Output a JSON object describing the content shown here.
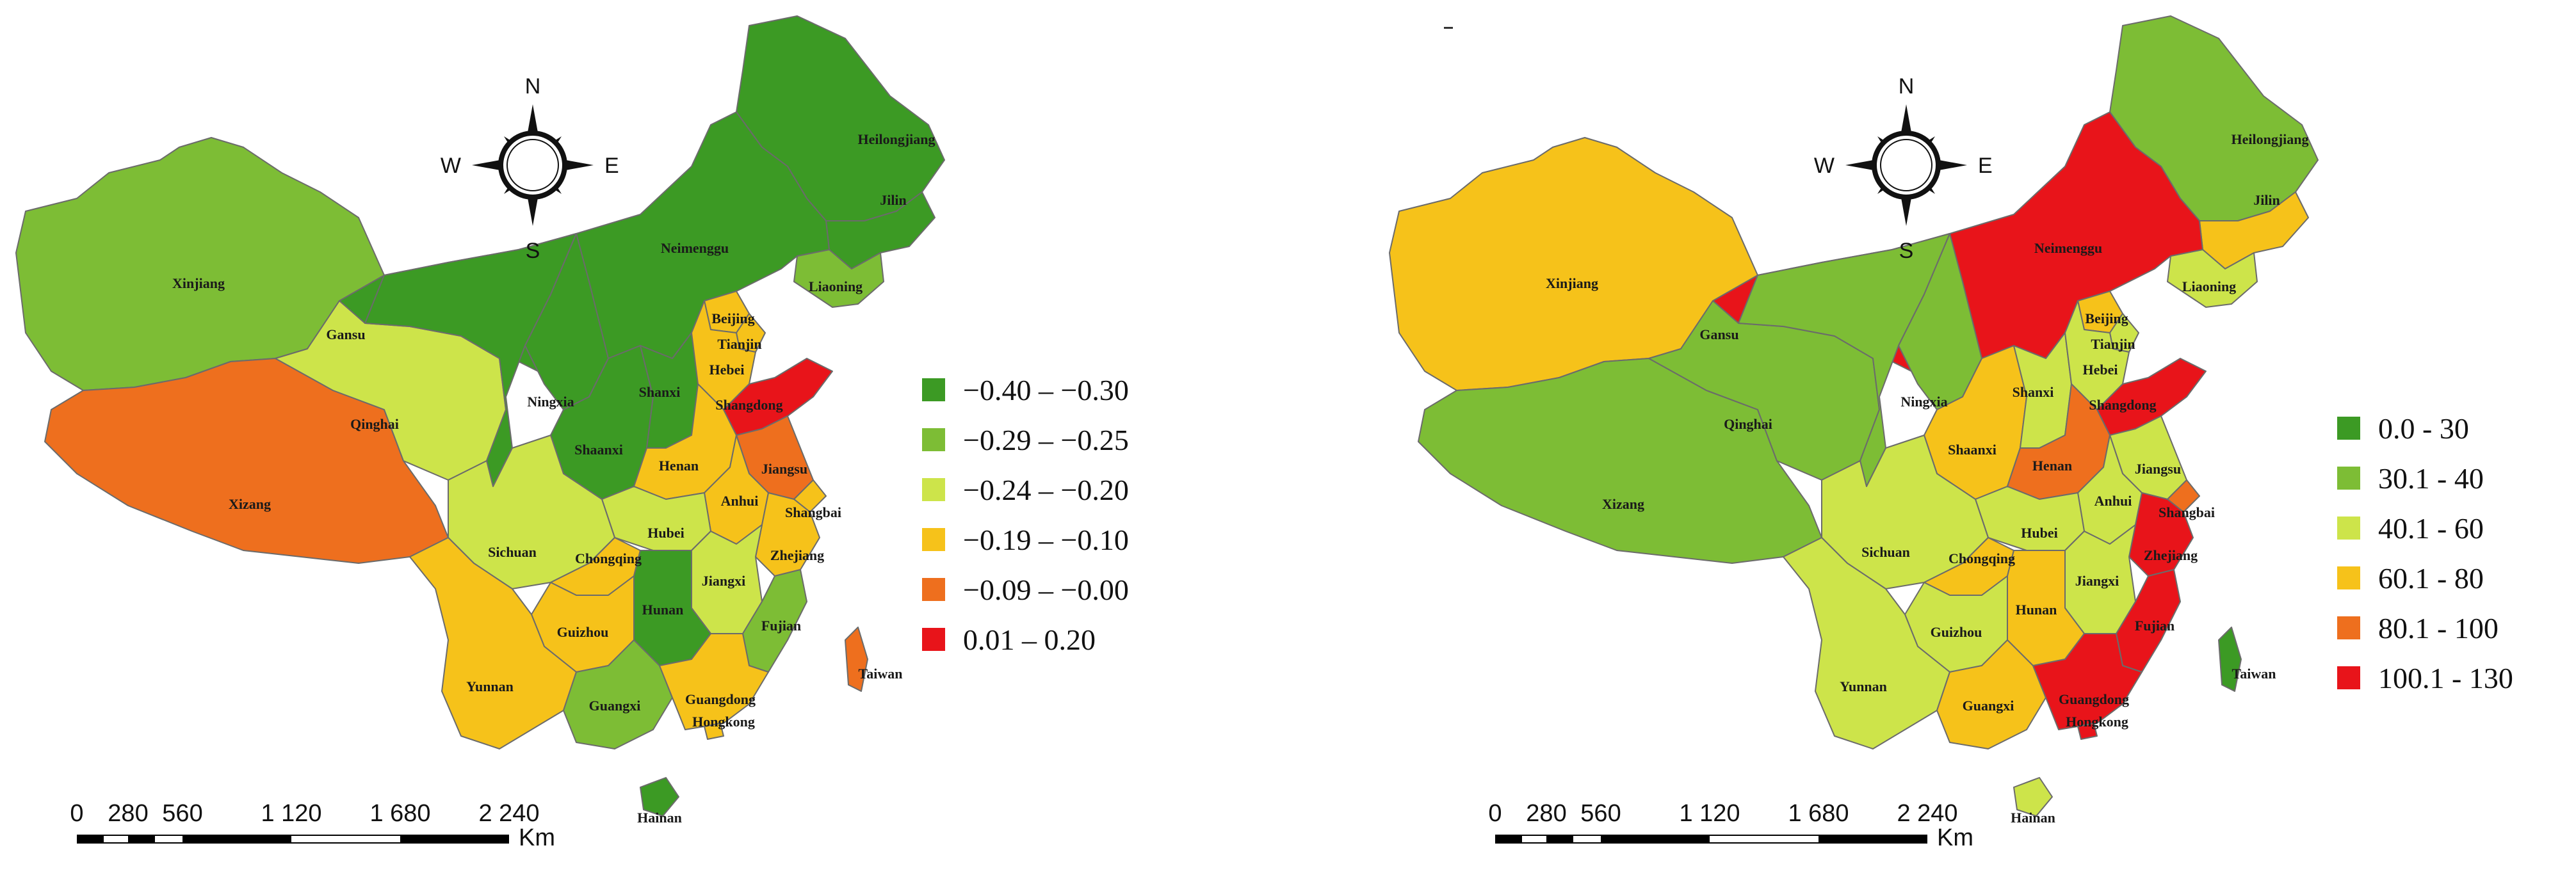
{
  "maps": [
    {
      "legend": [
        {
          "label": "−0.40 – −0.30",
          "color": "#3c9a24"
        },
        {
          "label": "−0.29 – −0.25",
          "color": "#7dbd35"
        },
        {
          "label": "−0.24 – −0.20",
          "color": "#cde44a"
        },
        {
          "label": "−0.19 – −0.10",
          "color": "#f6c21a"
        },
        {
          "label": "−0.09 – −0.00",
          "color": "#ee6f1e"
        },
        {
          "label": "0.01 – 0.20",
          "color": "#e8141a"
        }
      ],
      "colors": {
        "Heilongjiang": "#3c9a24",
        "Jilin": "#3c9a24",
        "Liaoning": "#7dbd35",
        "Neimenggu": "#3c9a24",
        "Xinjiang": "#7dbd35",
        "Xizang": "#ee6f1e",
        "Qinghai": "#cde44a",
        "Gansu": "#3c9a24",
        "Ningxia": "#3c9a24",
        "Shaanxi": "#3c9a24",
        "Shanxi": "#3c9a24",
        "Beijing": "#f6c21a",
        "Tianjin": "#f6c21a",
        "Hebei": "#f6c21a",
        "Shangdong": "#e8141a",
        "Henan": "#f6c21a",
        "Jiangsu": "#ee6f1e",
        "Shangbai": "#f6c21a",
        "Anhui": "#f6c21a",
        "Hubei": "#cde44a",
        "Sichuan": "#cde44a",
        "Chongqing": "#f6c21a",
        "Zhejiang": "#f6c21a",
        "Jiangxi": "#cde44a",
        "Hunan": "#3c9a24",
        "Guizhou": "#f6c21a",
        "Yunnan": "#f6c21a",
        "Guangxi": "#7dbd35",
        "Guangdong": "#f6c21a",
        "Hongkong": "#f6c21a",
        "Fujian": "#7dbd35",
        "Taiwan": "#ee6f1e",
        "Hainan": "#3c9a24"
      }
    },
    {
      "legend": [
        {
          "label": "0.0 - 30",
          "color": "#3c9a24"
        },
        {
          "label": "30.1 - 40",
          "color": "#7dbd35"
        },
        {
          "label": "40.1 - 60",
          "color": "#cde44a"
        },
        {
          "label": "60.1 - 80",
          "color": "#f6c21a"
        },
        {
          "label": "80.1 - 100",
          "color": "#ee6f1e"
        },
        {
          "label": "100.1 - 130",
          "color": "#e8141a"
        }
      ],
      "colors": {
        "Heilongjiang": "#7dbd35",
        "Jilin": "#f6c21a",
        "Liaoning": "#cde44a",
        "Neimenggu": "#e8141a",
        "Xinjiang": "#f6c21a",
        "Xizang": "#7dbd35",
        "Qinghai": "#7dbd35",
        "Gansu": "#7dbd35",
        "Ningxia": "#7dbd35",
        "Shaanxi": "#f6c21a",
        "Shanxi": "#cde44a",
        "Beijing": "#f6c21a",
        "Tianjin": "#cde44a",
        "Hebei": "#cde44a",
        "Shangdong": "#e8141a",
        "Henan": "#ee6f1e",
        "Jiangsu": "#cde44a",
        "Shangbai": "#ee6f1e",
        "Anhui": "#cde44a",
        "Hubei": "#cde44a",
        "Sichuan": "#cde44a",
        "Chongqing": "#f6c21a",
        "Zhejiang": "#e8141a",
        "Jiangxi": "#cde44a",
        "Hunan": "#f6c21a",
        "Guizhou": "#cde44a",
        "Yunnan": "#cde44a",
        "Guangxi": "#f6c21a",
        "Guangdong": "#e8141a",
        "Hongkong": "#e8141a",
        "Fujian": "#e8141a",
        "Taiwan": "#3c9a24",
        "Hainan": "#cde44a"
      }
    }
  ],
  "compass": {
    "n": "N",
    "s": "S",
    "e": "E",
    "w": "W"
  },
  "scale": {
    "ticks": [
      "0",
      "280",
      "560",
      "1 120",
      "1 680",
      "2 240"
    ],
    "unit": "Km"
  },
  "provinces": {
    "Heilongjiang": "Heilongjiang",
    "Jilin": "Jilin",
    "Liaoning": "Liaoning",
    "Neimenggu": "Neimenggu",
    "Xinjiang": "Xinjiang",
    "Xizang": "Xizang",
    "Qinghai": "Qinghai",
    "Gansu": "Gansu",
    "Ningxia": "Ningxia",
    "Shaanxi": "Shaanxi",
    "Shanxi": "Shanxi",
    "Beijing": "Beijing",
    "Tianjin": "Tianjin",
    "Hebei": "Hebei",
    "Shangdong": "Shangdong",
    "Henan": "Henan",
    "Jiangsu": "Jiangsu",
    "Shangbai": "Shangbai",
    "Anhui": "Anhui",
    "Hubei": "Hubei",
    "Sichuan": "Sichuan",
    "Chongqing": "Chongqing",
    "Zhejiang": "Zhejiang",
    "Jiangxi": "Jiangxi",
    "Hunan": "Hunan",
    "Guizhou": "Guizhou",
    "Yunnan": "Yunnan",
    "Guangxi": "Guangxi",
    "Guangdong": "Guangdong",
    "Hongkong": "Hongkong",
    "Fujian": "Fujian",
    "Taiwan": "Taiwan",
    "Hainan": "Hainan"
  }
}
